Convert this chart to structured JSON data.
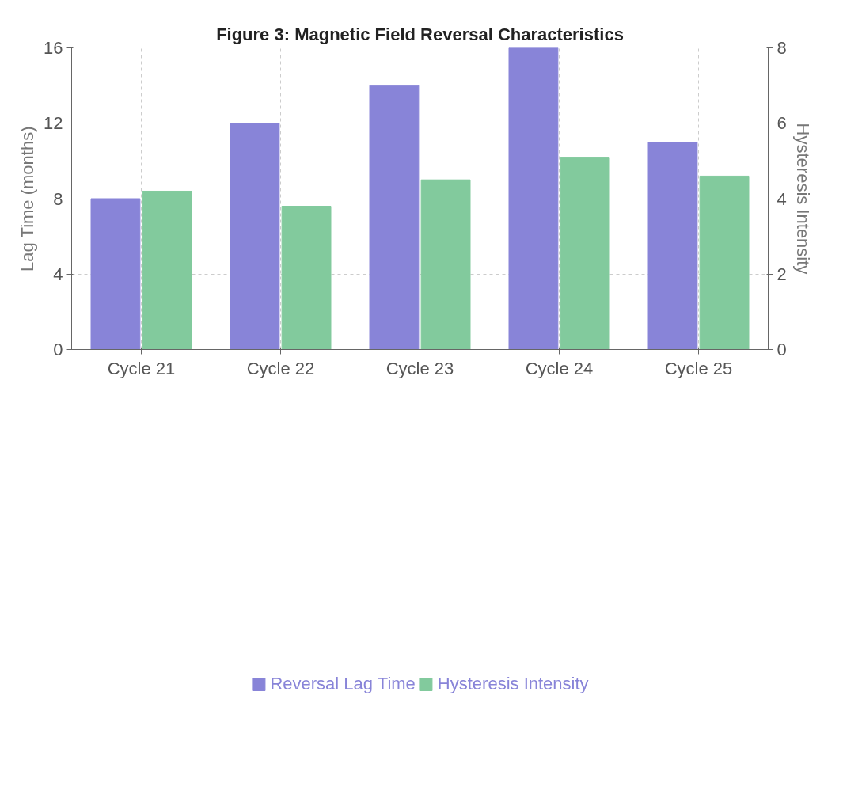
{
  "chart_data": {
    "type": "bar",
    "title": "Figure 3: Magnetic Field Reversal Characteristics",
    "ylabel": "Lag Time (months)",
    "y2label": "Hysteresis Intensity",
    "categories": [
      "Cycle 21",
      "Cycle 22",
      "Cycle 23",
      "Cycle 24",
      "Cycle 25"
    ],
    "series": [
      {
        "name": "Reversal Lag Time",
        "color": "#8884d8",
        "values": [
          8,
          12,
          14,
          16,
          11
        ]
      },
      {
        "name": "Hysteresis Intensity",
        "color": "#82ca9d",
        "axis": "y2",
        "values": [
          4.2,
          3.8,
          4.5,
          5.1,
          4.6
        ]
      }
    ],
    "ylim": [
      0,
      16
    ],
    "yticks": [
      0,
      4,
      8,
      12,
      16
    ],
    "y2lim": [
      0,
      8
    ],
    "y2ticks": [
      0,
      2,
      4,
      6,
      8
    ],
    "grid": true,
    "legend": "bottom"
  }
}
